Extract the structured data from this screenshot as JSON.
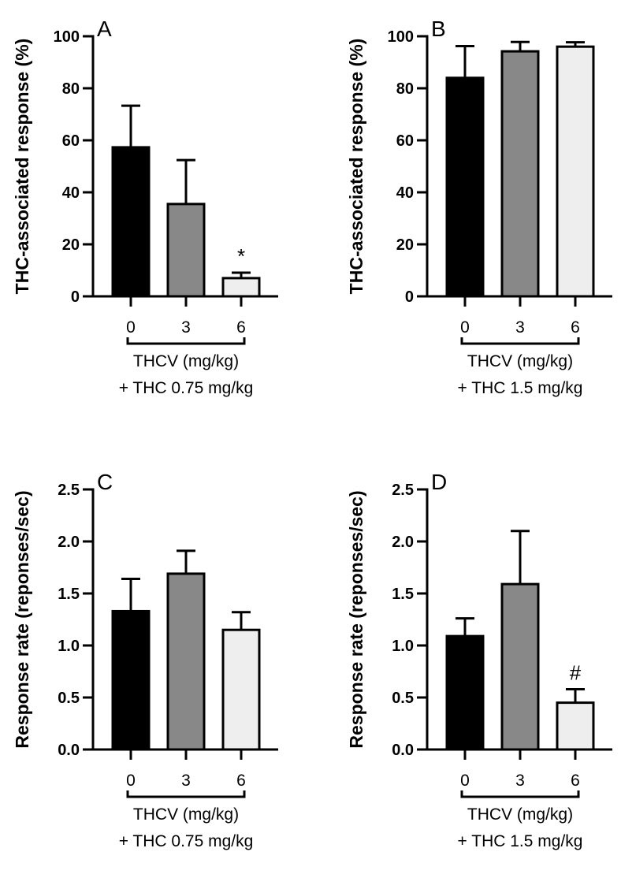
{
  "chart_data": [
    {
      "type": "bar",
      "panel": "A",
      "ylabel": "THC-associated response (%)",
      "xlabel_lines": [
        "THCV (mg/kg)",
        "+ THC 0.75 mg/kg"
      ],
      "categories": [
        "0",
        "3",
        "6"
      ],
      "values": [
        57.3,
        35.5,
        7.0
      ],
      "error_upper": [
        73.3,
        52.4,
        9.1
      ],
      "ylim": [
        0,
        100
      ],
      "yticks": [
        0,
        20,
        40,
        60,
        80,
        100
      ],
      "ytick_labels": [
        "0",
        "20",
        "40",
        "60",
        "80",
        "100"
      ],
      "annotations": [
        {
          "category": "6",
          "text": "*"
        }
      ],
      "grid": false
    },
    {
      "type": "bar",
      "panel": "B",
      "ylabel": "THC-associated response (%)",
      "xlabel_lines": [
        "THCV (mg/kg)",
        "+ THC 1.5 mg/kg"
      ],
      "categories": [
        "0",
        "3",
        "6"
      ],
      "values": [
        84.0,
        94.2,
        96.0
      ],
      "error_upper": [
        96.2,
        97.8,
        97.7
      ],
      "ylim": [
        0,
        100
      ],
      "yticks": [
        0,
        20,
        40,
        60,
        80,
        100
      ],
      "ytick_labels": [
        "0",
        "20",
        "40",
        "60",
        "80",
        "100"
      ],
      "annotations": [],
      "grid": false
    },
    {
      "type": "bar",
      "panel": "C",
      "ylabel": "Response rate (reponses/sec)",
      "xlabel_lines": [
        "THCV (mg/kg)",
        "+ THC 0.75 mg/kg"
      ],
      "categories": [
        "0",
        "3",
        "6"
      ],
      "values": [
        1.33,
        1.69,
        1.15
      ],
      "error_upper": [
        1.64,
        1.91,
        1.32
      ],
      "ylim": [
        0,
        2.5
      ],
      "yticks": [
        0,
        0.5,
        1.0,
        1.5,
        2.0,
        2.5
      ],
      "ytick_labels": [
        "0.0",
        "0.5",
        "1.0",
        "1.5",
        "2.0",
        "2.5"
      ],
      "annotations": [],
      "grid": false
    },
    {
      "type": "bar",
      "panel": "D",
      "ylabel": "Response rate (reponses/sec)",
      "xlabel_lines": [
        "THCV (mg/kg)",
        "+ THC 1.5 mg/kg"
      ],
      "categories": [
        "0",
        "3",
        "6"
      ],
      "values": [
        1.09,
        1.59,
        0.45
      ],
      "error_upper": [
        1.26,
        2.1,
        0.58
      ],
      "ylim": [
        0,
        2.5
      ],
      "yticks": [
        0,
        0.5,
        1.0,
        1.5,
        2.0,
        2.5
      ],
      "ytick_labels": [
        "0.0",
        "0.5",
        "1.0",
        "1.5",
        "2.0",
        "2.5"
      ],
      "annotations": [
        {
          "category": "6",
          "text": "#"
        }
      ],
      "grid": false
    }
  ],
  "colors": {
    "bar_fills": [
      "#000000",
      "#888888",
      "#eeeeee"
    ],
    "stroke": "#000000"
  }
}
